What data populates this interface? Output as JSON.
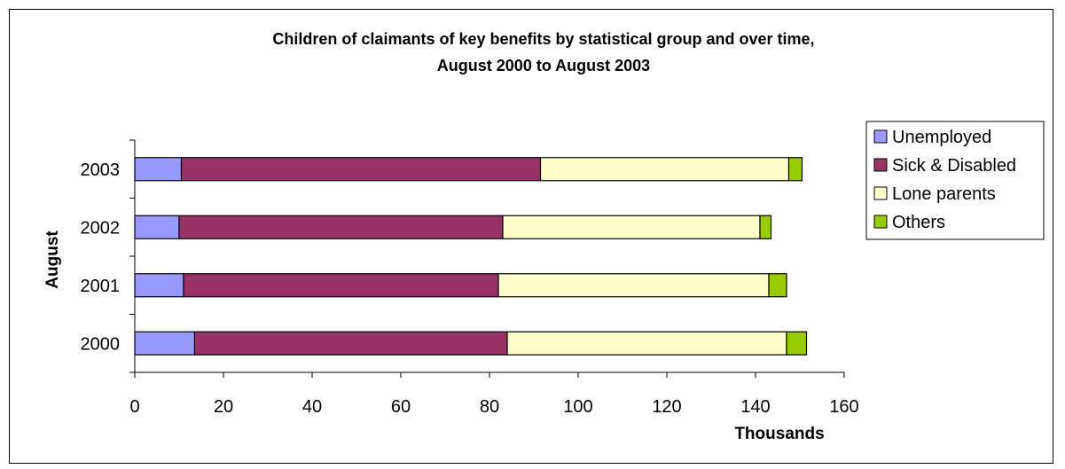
{
  "chart_data": {
    "type": "bar",
    "orientation": "horizontal",
    "stacked": true,
    "title": "Children of claimants of key benefits by statistical group and over time,",
    "subtitle": "August 2000 to August 2003",
    "xlabel": "Thousands",
    "ylabel": "August",
    "xlim": [
      0,
      160
    ],
    "xticks": [
      "0",
      "20",
      "40",
      "60",
      "80",
      "100",
      "120",
      "140",
      "160"
    ],
    "categories": [
      "2000",
      "2001",
      "2002",
      "2003"
    ],
    "series": [
      {
        "name": "Unemployed",
        "color": "#9999ff",
        "values": [
          13.5,
          11,
          10,
          10.5
        ]
      },
      {
        "name": "Sick & Disabled",
        "color": "#993366",
        "values": [
          70.5,
          71,
          73,
          81
        ]
      },
      {
        "name": "Lone parents",
        "color": "#ffffcc",
        "values": [
          63,
          61,
          58,
          56
        ]
      },
      {
        "name": "Others",
        "color": "#99cc00",
        "values": [
          4.5,
          4,
          2.5,
          3
        ]
      }
    ],
    "grid": false,
    "legend_position": "right"
  }
}
